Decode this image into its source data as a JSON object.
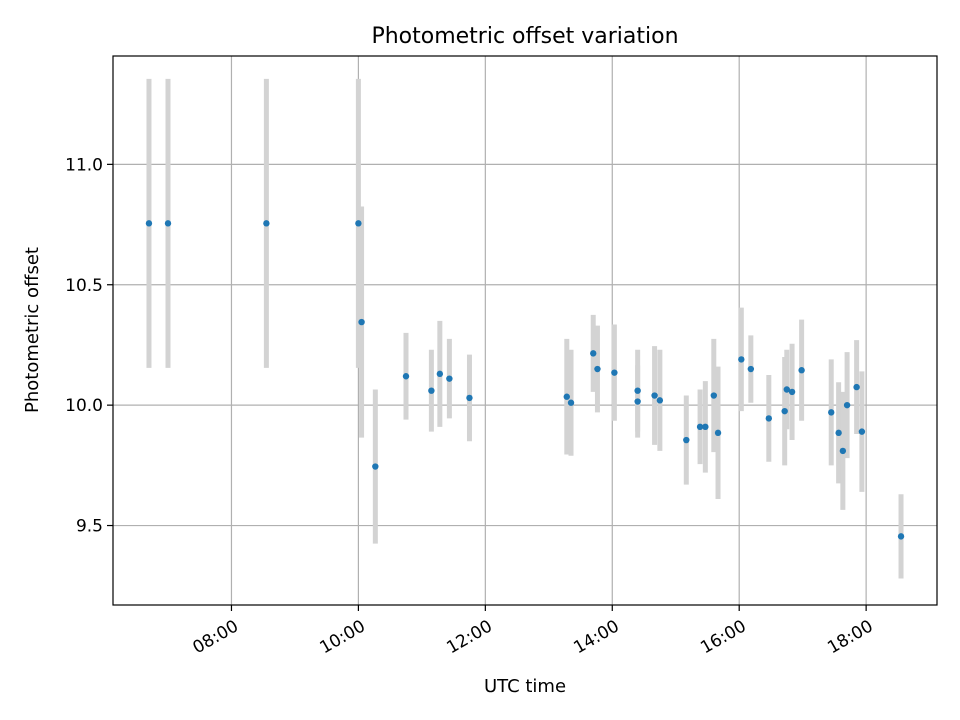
{
  "chart_data": {
    "type": "scatter",
    "title": "Photometric offset variation",
    "xlabel": "UTC time",
    "ylabel": "Photometric offset",
    "x_unit": "hours UTC",
    "xlim": [
      "06:08",
      "19:07"
    ],
    "ylim": [
      9.17,
      11.45
    ],
    "x_ticks": [
      "08:00",
      "10:00",
      "12:00",
      "14:00",
      "16:00",
      "18:00"
    ],
    "y_ticks": [
      "9.5",
      "10.0",
      "10.5",
      "11.0"
    ],
    "grid": true,
    "colors": {
      "point": "#1f77b4",
      "errorbar": "#d3d3d3"
    },
    "series": [
      {
        "points": [
          {
            "x": "06:42",
            "y": 10.755,
            "err": 0.6
          },
          {
            "x": "07:00",
            "y": 10.755,
            "err": 0.6
          },
          {
            "x": "08:33",
            "y": 10.755,
            "err": 0.6
          },
          {
            "x": "10:00",
            "y": 10.755,
            "err": 0.6
          },
          {
            "x": "10:03",
            "y": 10.345,
            "err": 0.48
          },
          {
            "x": "10:16",
            "y": 9.745,
            "err": 0.32
          },
          {
            "x": "10:45",
            "y": 10.12,
            "err": 0.18
          },
          {
            "x": "11:09",
            "y": 10.06,
            "err": 0.17
          },
          {
            "x": "11:17",
            "y": 10.13,
            "err": 0.22
          },
          {
            "x": "11:26",
            "y": 10.11,
            "err": 0.165
          },
          {
            "x": "11:45",
            "y": 10.03,
            "err": 0.18
          },
          {
            "x": "13:17",
            "y": 10.035,
            "err": 0.24
          },
          {
            "x": "13:21",
            "y": 10.01,
            "err": 0.22
          },
          {
            "x": "13:42",
            "y": 10.215,
            "err": 0.16
          },
          {
            "x": "13:46",
            "y": 10.15,
            "err": 0.18
          },
          {
            "x": "14:02",
            "y": 10.135,
            "err": 0.2
          },
          {
            "x": "14:24",
            "y": 10.06,
            "err": 0.17
          },
          {
            "x": "14:24",
            "y": 10.015,
            "err": 0.15
          },
          {
            "x": "14:40",
            "y": 10.04,
            "err": 0.205
          },
          {
            "x": "14:45",
            "y": 10.02,
            "err": 0.21
          },
          {
            "x": "15:10",
            "y": 9.855,
            "err": 0.185
          },
          {
            "x": "15:23",
            "y": 9.91,
            "err": 0.155
          },
          {
            "x": "15:28",
            "y": 9.91,
            "err": 0.19
          },
          {
            "x": "15:36",
            "y": 10.04,
            "err": 0.235
          },
          {
            "x": "15:40",
            "y": 9.885,
            "err": 0.275
          },
          {
            "x": "16:02",
            "y": 10.19,
            "err": 0.215
          },
          {
            "x": "16:11",
            "y": 10.15,
            "err": 0.14
          },
          {
            "x": "16:28",
            "y": 9.945,
            "err": 0.18
          },
          {
            "x": "16:43",
            "y": 9.975,
            "err": 0.225
          },
          {
            "x": "16:45",
            "y": 10.065,
            "err": 0.165
          },
          {
            "x": "16:50",
            "y": 10.055,
            "err": 0.2
          },
          {
            "x": "16:59",
            "y": 10.145,
            "err": 0.21
          },
          {
            "x": "17:27",
            "y": 9.97,
            "err": 0.22
          },
          {
            "x": "17:34",
            "y": 9.885,
            "err": 0.21
          },
          {
            "x": "17:38",
            "y": 9.81,
            "err": 0.245
          },
          {
            "x": "17:42",
            "y": 10.0,
            "err": 0.22
          },
          {
            "x": "17:51",
            "y": 10.075,
            "err": 0.195
          },
          {
            "x": "17:56",
            "y": 9.89,
            "err": 0.25
          },
          {
            "x": "18:33",
            "y": 9.455,
            "err": 0.175
          }
        ]
      }
    ]
  }
}
